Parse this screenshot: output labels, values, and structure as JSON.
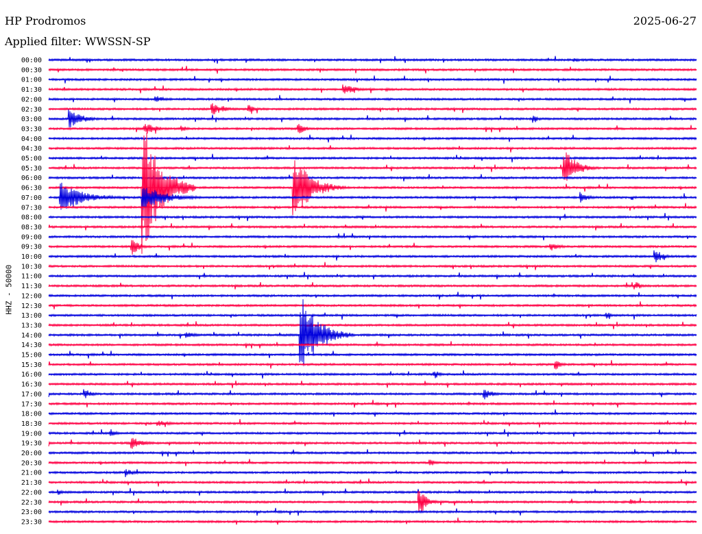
{
  "header": {
    "station": "HP Prodromos",
    "date": "2025-06-27",
    "filter": "Applied filter: WWSSN-SP"
  },
  "axis": {
    "ylabel": "HHZ - 50000"
  },
  "colors": {
    "even_rows": "#0000dd",
    "odd_rows": "#ff0044",
    "background": "#ffffff",
    "text": "#000000"
  },
  "chart_data": {
    "type": "line",
    "title": "",
    "xlabel": "",
    "ylabel": "HHZ - 50000",
    "rows": [
      "00:00",
      "00:30",
      "01:00",
      "01:30",
      "02:00",
      "02:30",
      "03:00",
      "03:30",
      "04:00",
      "04:30",
      "05:00",
      "05:30",
      "06:00",
      "06:30",
      "07:00",
      "07:30",
      "08:00",
      "08:30",
      "09:00",
      "09:30",
      "10:00",
      "10:30",
      "11:00",
      "11:30",
      "12:00",
      "12:30",
      "13:00",
      "13:30",
      "14:00",
      "14:30",
      "15:00",
      "15:30",
      "16:00",
      "16:30",
      "17:00",
      "17:30",
      "18:00",
      "18:30",
      "19:00",
      "19:30",
      "20:00",
      "20:30",
      "21:00",
      "21:30",
      "22:00",
      "22:30",
      "23:00",
      "23:30"
    ],
    "row_minutes": 30,
    "events": [
      {
        "row": "00:00",
        "minute": 24.4,
        "amplitude": 3,
        "duration": 0.8
      },
      {
        "row": "01:30",
        "minute": 13.7,
        "amplitude": 8,
        "duration": 1.6
      },
      {
        "row": "01:30",
        "minute": 15.7,
        "amplitude": 3,
        "duration": 0.8
      },
      {
        "row": "02:00",
        "minute": 5.0,
        "amplitude": 5,
        "duration": 1.3
      },
      {
        "row": "02:30",
        "minute": 7.6,
        "amplitude": 9,
        "duration": 1.7
      },
      {
        "row": "02:30",
        "minute": 9.3,
        "amplitude": 6,
        "duration": 0.8
      },
      {
        "row": "03:00",
        "minute": 1.0,
        "amplitude": 14,
        "duration": 1.7
      },
      {
        "row": "03:00",
        "minute": 22.5,
        "amplitude": 6,
        "duration": 0.6
      },
      {
        "row": "03:30",
        "minute": 4.5,
        "amplitude": 8,
        "duration": 1.7
      },
      {
        "row": "03:30",
        "minute": 11.6,
        "amplitude": 8,
        "duration": 1.0
      },
      {
        "row": "03:30",
        "minute": 6.2,
        "amplitude": 5,
        "duration": 0.9
      },
      {
        "row": "05:30",
        "minute": 23.9,
        "amplitude": 28,
        "duration": 1.6
      },
      {
        "row": "06:30",
        "minute": 11.4,
        "amplitude": 45,
        "duration": 2.4
      },
      {
        "row": "06:30",
        "minute": 4.4,
        "amplitude": 100,
        "duration": 2.4
      },
      {
        "row": "07:00",
        "minute": 0.6,
        "amplitude": 22,
        "duration": 3.2
      },
      {
        "row": "07:00",
        "minute": 4.4,
        "amplitude": 18,
        "duration": 3.2
      },
      {
        "row": "07:00",
        "minute": 24.7,
        "amplitude": 8,
        "duration": 1.0
      },
      {
        "row": "09:30",
        "minute": 3.9,
        "amplitude": 12,
        "duration": 1.0
      },
      {
        "row": "09:30",
        "minute": 23.3,
        "amplitude": 6,
        "duration": 1.3
      },
      {
        "row": "10:00",
        "minute": 28.1,
        "amplitude": 10,
        "duration": 1.2
      },
      {
        "row": "11:30",
        "minute": 27.2,
        "amplitude": 6,
        "duration": 1.0
      },
      {
        "row": "13:00",
        "minute": 25.9,
        "amplitude": 5,
        "duration": 0.6
      },
      {
        "row": "14:00",
        "minute": 11.7,
        "amplitude": 60,
        "duration": 2.4
      },
      {
        "row": "14:00",
        "minute": 6.4,
        "amplitude": 5,
        "duration": 1.2
      },
      {
        "row": "15:30",
        "minute": 23.5,
        "amplitude": 8,
        "duration": 0.8
      },
      {
        "row": "16:00",
        "minute": 17.9,
        "amplitude": 6,
        "duration": 0.8
      },
      {
        "row": "17:00",
        "minute": 1.7,
        "amplitude": 8,
        "duration": 0.9
      },
      {
        "row": "17:00",
        "minute": 20.2,
        "amplitude": 8,
        "duration": 1.2
      },
      {
        "row": "18:30",
        "minute": 5.1,
        "amplitude": 5,
        "duration": 1.5
      },
      {
        "row": "19:00",
        "minute": 2.9,
        "amplitude": 4,
        "duration": 1.2
      },
      {
        "row": "19:30",
        "minute": 3.9,
        "amplitude": 9,
        "duration": 1.4
      },
      {
        "row": "20:30",
        "minute": 17.7,
        "amplitude": 5,
        "duration": 0.8
      },
      {
        "row": "21:00",
        "minute": 3.6,
        "amplitude": 5,
        "duration": 1.8
      },
      {
        "row": "22:00",
        "minute": 0.5,
        "amplitude": 4,
        "duration": 0.6
      },
      {
        "row": "22:30",
        "minute": 17.2,
        "amplitude": 20,
        "duration": 1.0
      },
      {
        "row": "22:30",
        "minute": 27.0,
        "amplitude": 5,
        "duration": 0.6
      }
    ]
  }
}
